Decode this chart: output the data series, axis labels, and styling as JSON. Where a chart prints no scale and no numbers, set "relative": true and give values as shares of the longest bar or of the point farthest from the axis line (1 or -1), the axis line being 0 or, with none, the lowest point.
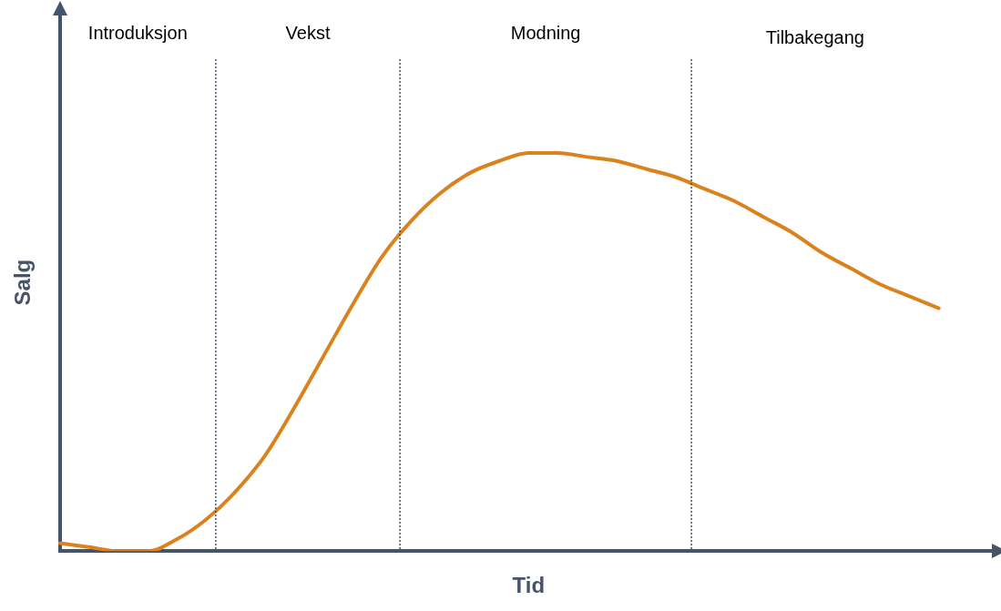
{
  "chart_data": {
    "type": "line",
    "relative": true,
    "xlabel": "Tid",
    "ylabel": "Salg",
    "categories": [
      null,
      null,
      null,
      null,
      null,
      null,
      null,
      null,
      null,
      null,
      null,
      null,
      null,
      null,
      null,
      null,
      null,
      null,
      null,
      null,
      null,
      null,
      null,
      null,
      null,
      null,
      null,
      null,
      null,
      null,
      null,
      null,
      null
    ],
    "series": [
      {
        "color": "#d9821e",
        "values": [
          0.02,
          0.01,
          0.0,
          0.0,
          0.03,
          0.08,
          0.15,
          0.24,
          0.36,
          0.49,
          0.62,
          0.74,
          0.83,
          0.9,
          0.95,
          0.98,
          1.0,
          1.0,
          0.99,
          0.98,
          0.96,
          0.94,
          0.91,
          0.88,
          0.84,
          0.8,
          0.75,
          0.71,
          0.67,
          0.64,
          0.61,
          null,
          null
        ]
      }
    ],
    "annotations": [
      "Introduksjon",
      "Vekst",
      "Modning",
      "Tilbakegang"
    ],
    "grid": false,
    "legend": false,
    "tick_labels": false,
    "marker": "none",
    "line_style": "solid"
  }
}
